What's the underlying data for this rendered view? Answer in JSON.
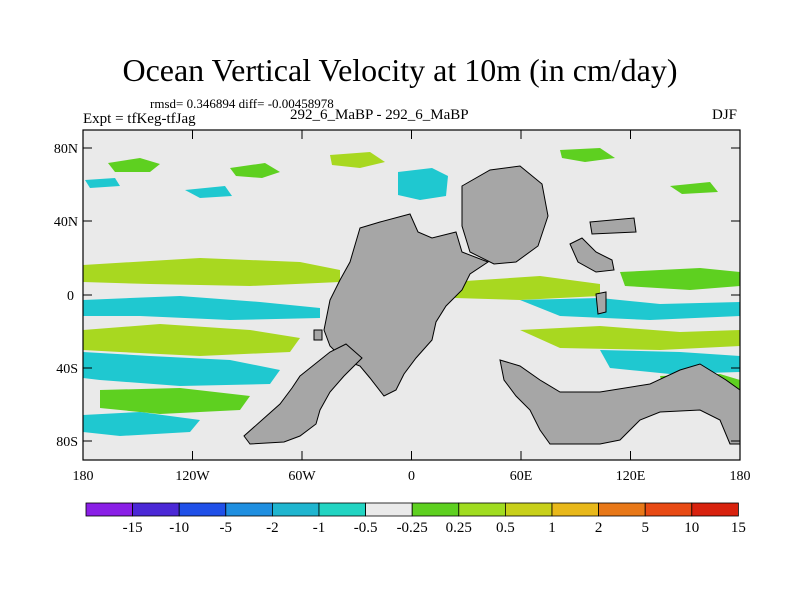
{
  "title": "Ocean Vertical Velocity at 10m (in cm/day)",
  "stats_line": "rmsd= 0.346894 diff= -0.00458978",
  "left_label": "Expt = tfKeg-tfJag",
  "center_label": "292_6_MaBP - 292_6_MaBP",
  "right_label": "DJF",
  "axes": {
    "y_ticks": [
      "80N",
      "40N",
      "0",
      "40S",
      "80S"
    ],
    "x_ticks": [
      "180",
      "120W",
      "60W",
      "0",
      "60E",
      "120E",
      "180"
    ]
  },
  "colorbar": {
    "colors": [
      "#8a1fe6",
      "#4b28d6",
      "#2050e8",
      "#1f8fe0",
      "#1fb5cf",
      "#22d4c2",
      "#eaeaea",
      "#5ed020",
      "#a0dc20",
      "#c8d01a",
      "#e8b81a",
      "#e87818",
      "#e84a14",
      "#d8220e"
    ],
    "labels": [
      "-15",
      "-10",
      "-5",
      "-2",
      "-1",
      "-0.5",
      "-0.25",
      "0.25",
      "0.5",
      "1",
      "2",
      "5",
      "10",
      "15"
    ]
  },
  "map_colors": {
    "land": "#a6a6a6",
    "neutral": "#eaeaea",
    "cyan": "#1fc8d0",
    "teal": "#22d4c2",
    "green": "#5ed020",
    "yellowgreen": "#a8d820",
    "blue": "#1f8fe0"
  }
}
